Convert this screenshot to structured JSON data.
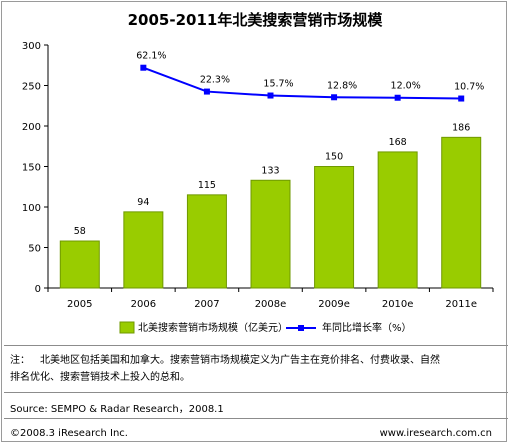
{
  "chart_data": {
    "type": "bar",
    "title": "2005-2011年北美搜索营销市场规模",
    "categories": [
      "2005",
      "2006",
      "2007",
      "2008e",
      "2009e",
      "2010e",
      "2011e"
    ],
    "series": [
      {
        "name": "北美搜索营销市场规模（亿美元）",
        "type": "bar",
        "values": [
          58,
          94,
          115,
          133,
          150,
          168,
          186
        ],
        "labels": [
          "58",
          "94",
          "115",
          "133",
          "150",
          "168",
          "186"
        ]
      },
      {
        "name": "年同比增长率（%）",
        "type": "line",
        "values": [
          null,
          62.1,
          22.3,
          15.7,
          12.8,
          12.0,
          10.7
        ],
        "labels": [
          "",
          "62.1%",
          "22.3%",
          "15.7%",
          "12.8%",
          "12.0%",
          "10.7%"
        ]
      }
    ],
    "yticks": [
      "0",
      "50",
      "100",
      "150",
      "200",
      "250",
      "300"
    ],
    "ylim": [
      0,
      300
    ],
    "grid": false,
    "legend_position": "bottom",
    "colors": {
      "bar": "#99cc00",
      "bar_edge": "#6f9900",
      "line": "#0000ff"
    }
  },
  "note": {
    "label": "注：",
    "text_line1": "北美地区包括美国和加拿大。搜索营销市场规模定义为广告主在竞价排名、付费收录、自然",
    "text_line2": "排名优化、搜索营销技术上投入的总和。"
  },
  "source": "Source: SEMPO & Radar Research，2008.1",
  "footer": {
    "copyright": "©2008.3 iResearch Inc.",
    "website": "www.iresearch.com.cn"
  }
}
